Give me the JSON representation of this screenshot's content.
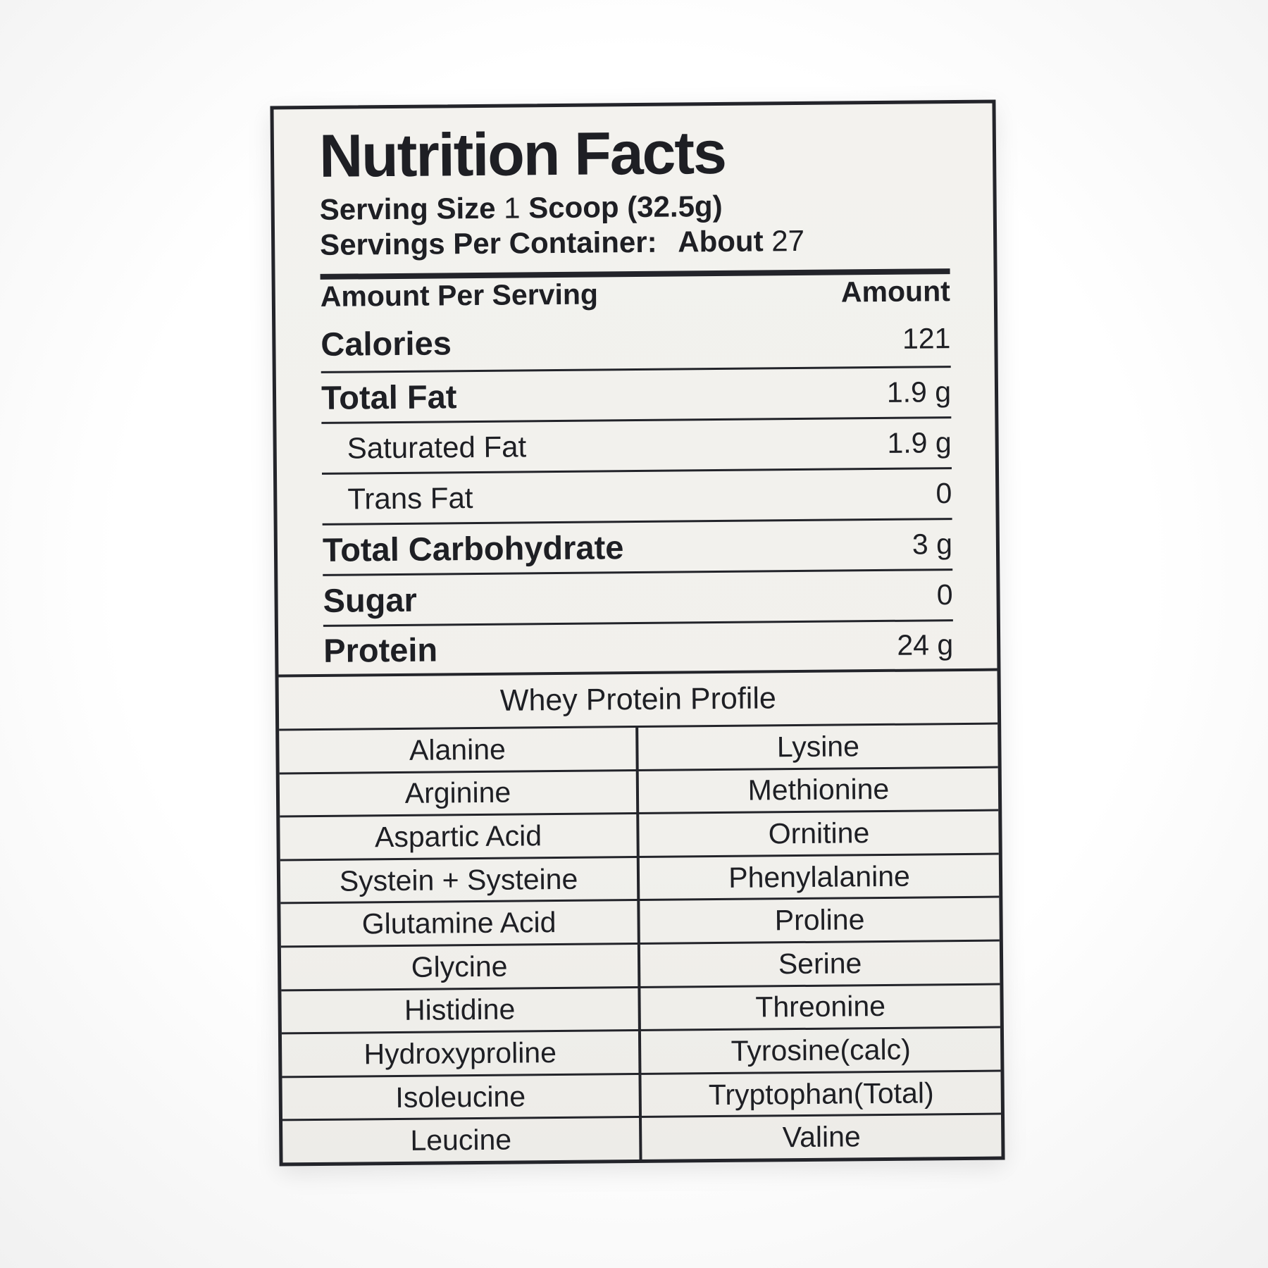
{
  "colors": {
    "ink": "#1e1f24",
    "label_background": "#f1f0ec",
    "border": "#23242a",
    "page_background": "#ffffff"
  },
  "label": {
    "title": "Nutrition Facts",
    "serving_size": {
      "label": "Serving Size",
      "qty": "1",
      "unit": "Scoop (32.5g)"
    },
    "servings_per_container": {
      "label": "Servings Per Container:",
      "approx": "About",
      "value": "27"
    },
    "columns": {
      "left": "Amount Per Serving",
      "right": "Amount"
    },
    "nutrients": [
      {
        "name": "Calories",
        "amount": "121",
        "style": "main"
      },
      {
        "name": "Total Fat",
        "amount": "1.9 g",
        "style": "main"
      },
      {
        "name": "Saturated Fat",
        "amount": "1.9 g",
        "style": "sub"
      },
      {
        "name": "Trans Fat",
        "amount": "0",
        "style": "sub"
      },
      {
        "name": "Total Carbohydrate",
        "amount": "3 g",
        "style": "main"
      },
      {
        "name": "Sugar",
        "amount": "0",
        "style": "main"
      },
      {
        "name": "Protein",
        "amount": "24 g",
        "style": "main"
      }
    ],
    "profile": {
      "title": "Whey Protein Profile",
      "rows": [
        {
          "left": "Alanine",
          "right": "Lysine"
        },
        {
          "left": "Arginine",
          "right": "Methionine"
        },
        {
          "left": "Aspartic Acid",
          "right": "Ornitine"
        },
        {
          "left": "Systein + Systeine",
          "right": "Phenylalanine"
        },
        {
          "left": "Glutamine Acid",
          "right": "Proline"
        },
        {
          "left": "Glycine",
          "right": "Serine"
        },
        {
          "left": "Histidine",
          "right": "Threonine"
        },
        {
          "left": "Hydroxyproline",
          "right": "Tyrosine(calc)"
        },
        {
          "left": "Isoleucine",
          "right": "Tryptophan(Total)"
        },
        {
          "left": "Leucine",
          "right": "Valine"
        }
      ]
    }
  }
}
